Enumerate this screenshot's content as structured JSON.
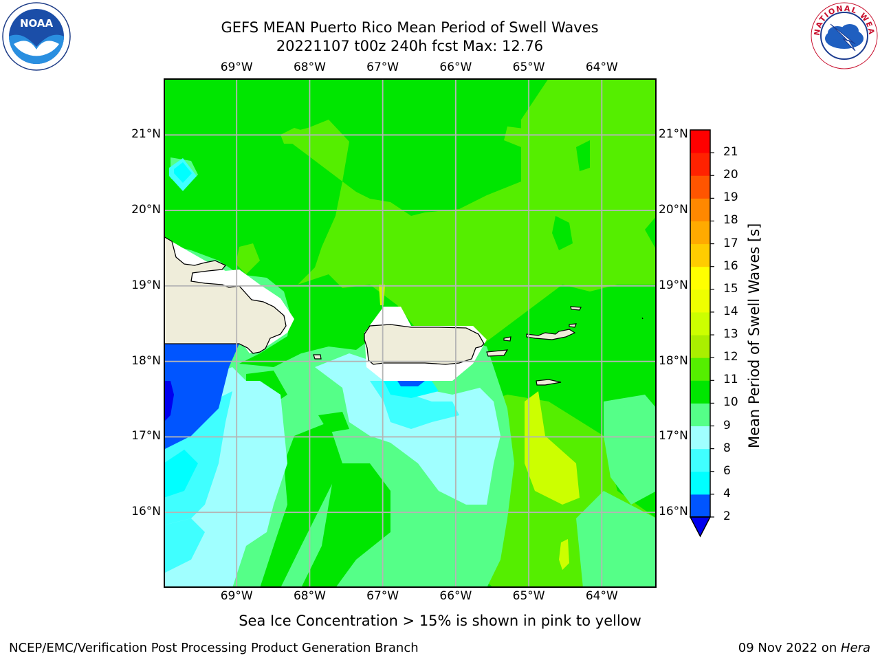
{
  "header": {
    "title_line1": "GEFS MEAN Puerto Rico Mean Period of Swell Waves",
    "title_line2": "20221107 t00z 240h fcst   Max: 12.76"
  },
  "logos": {
    "left": {
      "name": "noaa-logo",
      "text": "NOAA"
    },
    "right": {
      "name": "nws-logo",
      "text": "NATIONAL WEATHER SERVICE"
    }
  },
  "map": {
    "lon_labels": [
      "69°W",
      "68°W",
      "67°W",
      "66°W",
      "65°W",
      "64°W"
    ],
    "lat_labels": [
      "21°N",
      "20°N",
      "19°N",
      "18°N",
      "17°N",
      "16°N"
    ],
    "lon_values": [
      -69,
      -68,
      -67,
      -66,
      -65,
      -64
    ],
    "lat_values": [
      21,
      20,
      19,
      18,
      17,
      16
    ],
    "extent": {
      "lon_min": -70,
      "lon_max": -63.25,
      "lat_min": 15,
      "lat_max": 21.75
    },
    "land_color": "#efedda",
    "ocean_base_color": "#00e600"
  },
  "colorbar": {
    "title": "Mean Period of Swell Waves [s]",
    "levels": [
      "2",
      "4",
      "6",
      "8",
      "9",
      "10",
      "11",
      "12",
      "13",
      "14",
      "15",
      "16",
      "17",
      "18",
      "19",
      "20",
      "21"
    ],
    "colors": [
      "#0055ff",
      "#00ffff",
      "#40ffff",
      "#a0ffff",
      "#55ff88",
      "#00e600",
      "#55ee00",
      "#aaee00",
      "#ccff00",
      "#eeff00",
      "#ffff00",
      "#ffcc00",
      "#ffaa00",
      "#ff8800",
      "#ff5500",
      "#ff2200",
      "#ff0000"
    ],
    "underflow_color": "#0000ee"
  },
  "caption": "Sea Ice Concentration > 15% is shown in pink to yellow",
  "footer": {
    "left": "NCEP/EMC/Verification Post Processing Product Generation Branch",
    "date": "09 Nov 2022 on ",
    "host": "Hera"
  }
}
